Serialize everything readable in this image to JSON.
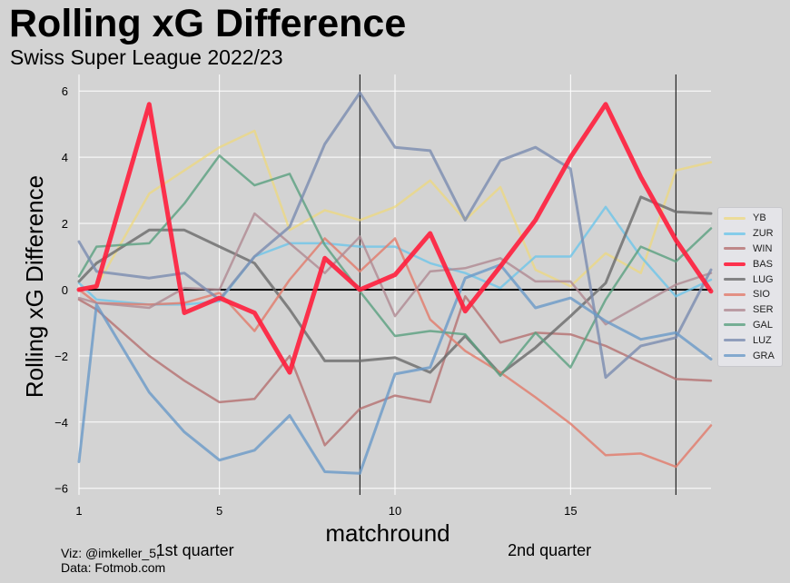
{
  "chart_data": {
    "type": "line",
    "title": "Rolling xG Difference",
    "subtitle": "Swiss Super League 2022/23",
    "xlabel": "matchround",
    "ylabel": "Rolling xG Difference",
    "xlim": [
      1,
      19
    ],
    "ylim": [
      -6.2,
      6.5
    ],
    "xticks": [
      1,
      5,
      10,
      15
    ],
    "yticks": [
      -6,
      -4,
      -2,
      0,
      2,
      4,
      6
    ],
    "grid": true,
    "legend_position": "right",
    "zero_line": 0,
    "vlines": [
      9,
      18
    ],
    "annotations": [
      {
        "text": "1st quarter",
        "x": 4.3
      },
      {
        "text": "2nd quarter",
        "x": 14.4
      }
    ],
    "x": [
      1,
      1.5,
      3,
      4,
      5,
      6,
      7,
      8,
      9,
      10,
      11,
      12,
      13,
      14,
      15,
      16,
      17,
      18,
      19
    ],
    "series": [
      {
        "name": "YB",
        "color": "#f0d878",
        "width": 2.5,
        "opacity": 0.7,
        "values": [
          0,
          0.1,
          2.9,
          3.6,
          4.3,
          4.8,
          1.8,
          2.4,
          2.1,
          2.5,
          3.3,
          2.1,
          3.1,
          0.6,
          0.1,
          1.1,
          0.5,
          3.6,
          3.85
        ]
      },
      {
        "name": "ZUR",
        "color": "#6ec6ea",
        "width": 2.5,
        "opacity": 0.8,
        "values": [
          0.2,
          -0.3,
          -0.45,
          -0.45,
          -0.35,
          1.0,
          1.4,
          1.4,
          1.3,
          1.3,
          0.8,
          0.5,
          0.05,
          1.0,
          1.0,
          2.5,
          1.0,
          -0.2,
          0.3
        ]
      },
      {
        "name": "WIN",
        "color": "#b57070",
        "width": 2.5,
        "opacity": 0.8,
        "values": [
          -0.3,
          -0.6,
          -2.0,
          -2.75,
          -3.4,
          -3.3,
          -2.0,
          -4.7,
          -3.6,
          -3.2,
          -3.4,
          -0.2,
          -1.6,
          -1.3,
          -1.35,
          -1.7,
          -2.2,
          -2.7,
          -2.75
        ]
      },
      {
        "name": "BAS",
        "color": "#ff1e3c",
        "width": 5,
        "opacity": 0.9,
        "values": [
          0,
          0.1,
          5.6,
          -0.7,
          -0.25,
          -0.7,
          -2.5,
          0.95,
          0.0,
          0.45,
          1.7,
          -0.65,
          0.7,
          2.1,
          4.0,
          5.6,
          3.4,
          1.5,
          -0.05
        ]
      },
      {
        "name": "LUG",
        "color": "#6a6a6a",
        "width": 3,
        "opacity": 0.8,
        "values": [
          0.25,
          0.8,
          1.8,
          1.8,
          1.3,
          0.8,
          -0.6,
          -2.15,
          -2.15,
          -2.05,
          -2.5,
          -1.4,
          -2.55,
          -1.75,
          -0.8,
          0.2,
          2.8,
          2.35,
          2.3
        ]
      },
      {
        "name": "SIO",
        "color": "#e27a6a",
        "width": 2.5,
        "opacity": 0.8,
        "values": [
          0,
          -0.4,
          -0.45,
          -0.4,
          -0.1,
          -1.25,
          0.3,
          1.55,
          0.55,
          1.55,
          -0.9,
          -1.85,
          -2.5,
          -3.25,
          -4.05,
          -5.0,
          -4.95,
          -5.35,
          -4.1
        ]
      },
      {
        "name": "SER",
        "color": "#b08a92",
        "width": 2.5,
        "opacity": 0.8,
        "values": [
          -0.25,
          -0.4,
          -0.55,
          0.05,
          0.0,
          2.3,
          1.4,
          0.5,
          1.6,
          -0.8,
          0.55,
          0.65,
          0.95,
          0.25,
          0.25,
          -1.05,
          -0.45,
          0.15,
          0.5
        ]
      },
      {
        "name": "GAL",
        "color": "#5aa080",
        "width": 2.5,
        "opacity": 0.8,
        "values": [
          0.4,
          1.3,
          1.4,
          2.6,
          4.05,
          3.15,
          3.5,
          1.35,
          -0.05,
          -1.4,
          -1.25,
          -1.35,
          -2.6,
          -1.3,
          -2.35,
          -0.3,
          1.3,
          0.85,
          1.85
        ]
      },
      {
        "name": "LUZ",
        "color": "#7a8cb0",
        "width": 3,
        "opacity": 0.8,
        "values": [
          1.45,
          0.55,
          0.35,
          0.5,
          -0.3,
          1.0,
          1.9,
          4.4,
          5.95,
          4.3,
          4.2,
          2.1,
          3.9,
          4.3,
          3.65,
          -2.65,
          -1.7,
          -1.45,
          0.6
        ]
      },
      {
        "name": "GRA",
        "color": "#6a9ac8",
        "width": 3,
        "opacity": 0.8,
        "values": [
          -5.2,
          -0.45,
          -3.1,
          -4.3,
          -5.15,
          -4.85,
          -3.8,
          -5.5,
          -5.55,
          -2.55,
          -2.35,
          0.35,
          0.75,
          -0.55,
          -0.25,
          -0.95,
          -1.5,
          -1.3,
          -2.1
        ]
      }
    ],
    "credit": [
      "Viz: @imkeller_5,",
      "Data: Fotmob.com"
    ]
  }
}
